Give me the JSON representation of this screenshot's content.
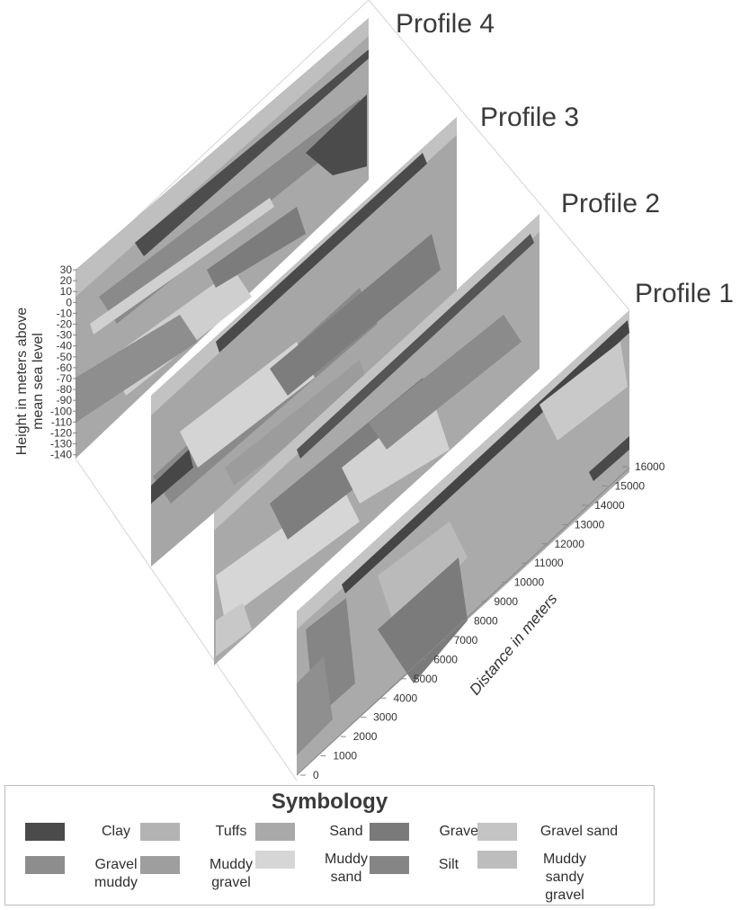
{
  "profiles": [
    {
      "title": "Profile 4"
    },
    {
      "title": "Profile 3"
    },
    {
      "title": "Profile 2"
    },
    {
      "title": "Profile 1"
    }
  ],
  "axes": {
    "height_label_line1": "Height in meters above",
    "height_label_line2": "mean sea level",
    "height_ticks": [
      "30",
      "20",
      "10",
      "0",
      "-10",
      "-20",
      "-30",
      "-40",
      "-50",
      "-60",
      "-70",
      "-80",
      "-90",
      "-100",
      "-110",
      "-120",
      "-130",
      "-140"
    ],
    "distance_label": "Distance in meters",
    "distance_ticks": [
      "0",
      "1000",
      "2000",
      "3000",
      "4000",
      "5000",
      "6000",
      "7000",
      "8000",
      "9000",
      "10000",
      "11000",
      "12000",
      "13000",
      "14000",
      "15000",
      "16000"
    ]
  },
  "legend": {
    "title": "Symbology",
    "items": [
      {
        "label": "Clay",
        "color": "#4b4b4b"
      },
      {
        "label": "Tuffs",
        "color": "#b3b3b3"
      },
      {
        "label": "Sand",
        "color": "#a9a9a9"
      },
      {
        "label": "Gravel",
        "color": "#7a7a7a"
      },
      {
        "label": "Gravel sand",
        "color": "#c4c4c4"
      },
      {
        "label": "Gravel muddy",
        "color": "#8d8d8d"
      },
      {
        "label": "Muddy gravel",
        "color": "#9e9e9e"
      },
      {
        "label": "Muddy sand",
        "color": "#d6d6d6"
      },
      {
        "label": "Silt",
        "color": "#858585"
      },
      {
        "label": "Muddy sandy gravel",
        "color": "#bdbdbd"
      }
    ]
  }
}
